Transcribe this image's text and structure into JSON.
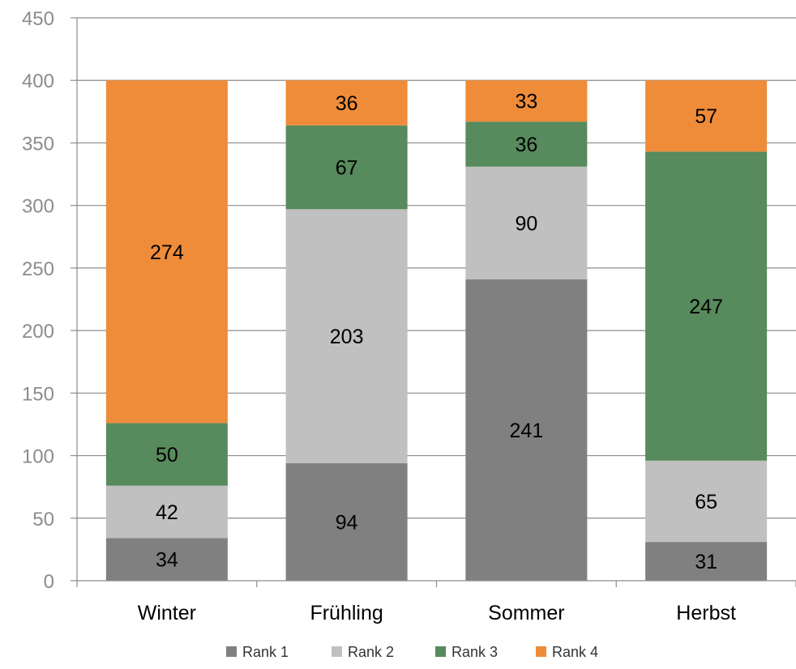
{
  "chart_data": {
    "type": "bar",
    "stacked": true,
    "categories": [
      "Winter",
      "Frühling",
      "Sommer",
      "Herbst"
    ],
    "series": [
      {
        "name": "Rank 1",
        "color": "#808080",
        "values": [
          34,
          94,
          241,
          31
        ]
      },
      {
        "name": "Rank 2",
        "color": "#c0c0c0",
        "values": [
          42,
          203,
          90,
          65
        ]
      },
      {
        "name": "Rank 3",
        "color": "#578a5c",
        "values": [
          50,
          67,
          36,
          247
        ]
      },
      {
        "name": "Rank 4",
        "color": "#ee8c3a",
        "values": [
          274,
          36,
          33,
          57
        ]
      }
    ],
    "title": "",
    "xlabel": "",
    "ylabel": "",
    "ylim": [
      0,
      450
    ],
    "yticks": [
      "0",
      "50",
      "100",
      "150",
      "200",
      "250",
      "300",
      "350",
      "400",
      "450"
    ],
    "grid": true,
    "legend": "bottom-center",
    "data_labels": true
  }
}
